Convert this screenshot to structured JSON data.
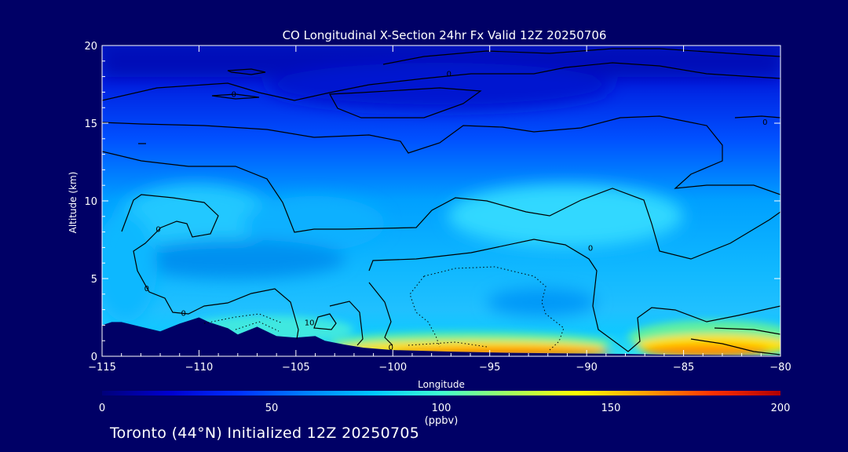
{
  "chart_data": {
    "type": "heatmap",
    "title": "CO Longitudinal X-Section 24hr  Fx Valid 12Z 20250706",
    "xlabel": "Longitude",
    "ylabel": "Altitude (km)",
    "xlim": [
      -115,
      -80
    ],
    "ylim": [
      0,
      20
    ],
    "x_ticks": [
      -115,
      -110,
      -105,
      -100,
      -95,
      -90,
      -85,
      -80
    ],
    "x_tick_labels": [
      "-115",
      "-110",
      "-105",
      "-100",
      "-95",
      "-90",
      "-85",
      "-80"
    ],
    "y_ticks": [
      0,
      5,
      10,
      15,
      20
    ],
    "y_tick_labels": [
      "0",
      "5",
      "10",
      "15",
      "20"
    ],
    "colorbar": {
      "min": 0,
      "max": 200,
      "ticks": [
        0,
        50,
        100,
        150,
        200
      ],
      "tick_labels": [
        "0",
        "50",
        "100",
        "150",
        "200"
      ],
      "label": "(ppbv)",
      "colors": [
        "#00007a",
        "#0000d0",
        "#0030ff",
        "#0080ff",
        "#00c8ff",
        "#40ffd0",
        "#a0ff60",
        "#ffff00",
        "#ffa000",
        "#ff3000",
        "#b00000"
      ]
    },
    "terrain": [
      [
        -115,
        2.0
      ],
      [
        -114.5,
        2.2
      ],
      [
        -114,
        2.2
      ],
      [
        -113,
        1.9
      ],
      [
        -112,
        1.6
      ],
      [
        -111,
        2.1
      ],
      [
        -110,
        2.5
      ],
      [
        -109.5,
        2.2
      ],
      [
        -108.5,
        1.8
      ],
      [
        -108,
        1.4
      ],
      [
        -107,
        1.9
      ],
      [
        -106.5,
        1.6
      ],
      [
        -106,
        1.3
      ],
      [
        -105,
        1.2
      ],
      [
        -104,
        1.3
      ],
      [
        -103.5,
        1.0
      ],
      [
        -102.5,
        0.75
      ],
      [
        -101.5,
        0.55
      ],
      [
        -100,
        0.4
      ],
      [
        -97,
        0.3
      ],
      [
        -94,
        0.22
      ],
      [
        -91,
        0.18
      ],
      [
        -88,
        0.15
      ],
      [
        -86,
        0.1
      ],
      [
        -80,
        0.05
      ]
    ],
    "contour_labels": [
      {
        "x": -112.1,
        "y": 8.2,
        "text": "0"
      },
      {
        "x": -112.7,
        "y": 4.4,
        "text": "0"
      },
      {
        "x": -110.8,
        "y": 2.8,
        "text": "0"
      },
      {
        "x": -108.2,
        "y": 16.9,
        "text": "0"
      },
      {
        "x": -104.3,
        "y": 2.2,
        "text": "10"
      },
      {
        "x": -100.1,
        "y": 0.6,
        "text": "0"
      },
      {
        "x": -97.1,
        "y": 18.2,
        "text": "0"
      },
      {
        "x": -89.8,
        "y": 7.0,
        "text": "0"
      },
      {
        "x": -80.8,
        "y": 15.1,
        "text": "0"
      }
    ],
    "value_field": "CO mixing ratio: 20-35 ppbv above 15 km, 40-55 ppbv at 6-12 km, 60-90 ppbv near 2-4 km, peaks of 130-170 ppbv in the boundary layer near -100 to -88 and -86 to -80"
  },
  "footer": {
    "text": "Toronto (44°N) Initialized 12Z 20250705"
  }
}
